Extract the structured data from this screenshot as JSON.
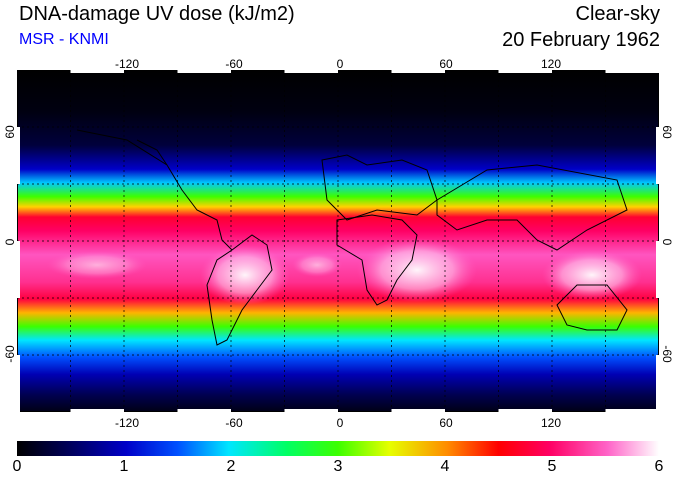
{
  "header": {
    "title": "DNA-damage UV dose (kJ/m2)",
    "subtitle": "MSR - KNMI",
    "condition": "Clear-sky",
    "date": "20 February 1962"
  },
  "map": {
    "lon_ticks": [
      "-120",
      "-60",
      "0",
      "60",
      "120"
    ],
    "lon_values": [
      -120,
      -60,
      0,
      60,
      120
    ],
    "lat_ticks": [
      "60",
      "0",
      "-60"
    ],
    "lat_values": [
      60,
      0,
      -60
    ],
    "lon_range": [
      -180,
      180
    ],
    "lat_range": [
      -90,
      90
    ],
    "grid": "dotted, every 30 degrees",
    "land_outline": "black coastlines",
    "pattern": "dose peaks 5-6 kJ/m2 near latitudes 0 to -25 over South America, southern Africa and Australia; near 0 at high latitudes"
  },
  "colorbar": {
    "labels": [
      "0",
      "1",
      "2",
      "3",
      "4",
      "5",
      "6"
    ],
    "values": [
      0,
      1,
      2,
      3,
      4,
      5,
      6
    ],
    "colors": [
      "#000000",
      "#0000c8",
      "#00e6ff",
      "#3cff00",
      "#ff8c00",
      "#ff0064",
      "#ffffff"
    ]
  }
}
